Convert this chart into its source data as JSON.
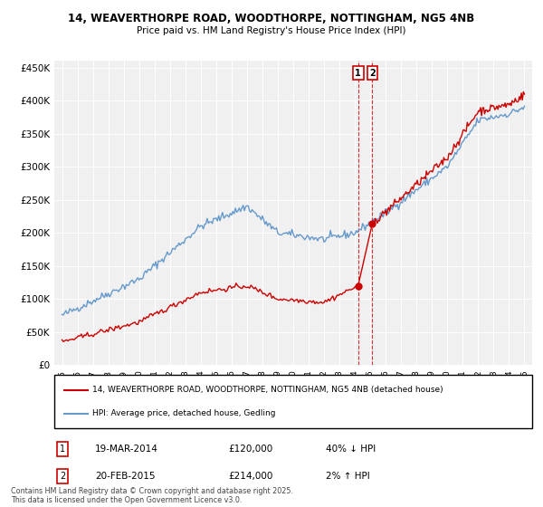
{
  "title1": "14, WEAVERTHORPE ROAD, WOODTHORPE, NOTTINGHAM, NG5 4NB",
  "title2": "Price paid vs. HM Land Registry's House Price Index (HPI)",
  "legend_line1": "14, WEAVERTHORPE ROAD, WOODTHORPE, NOTTINGHAM, NG5 4NB (detached house)",
  "legend_line2": "HPI: Average price, detached house, Gedling",
  "table_rows": [
    {
      "num": "1",
      "date": "19-MAR-2014",
      "price": "£120,000",
      "pct": "40% ↓ HPI"
    },
    {
      "num": "2",
      "date": "20-FEB-2015",
      "price": "£214,000",
      "pct": "2% ↑ HPI"
    }
  ],
  "footnote": "Contains HM Land Registry data © Crown copyright and database right 2025.\nThis data is licensed under the Open Government Licence v3.0.",
  "sale1_date": 2014.21,
  "sale1_price": 120000,
  "sale2_date": 2015.13,
  "sale2_price": 214000,
  "ylim": [
    0,
    460000
  ],
  "xlim_start": 1994.5,
  "xlim_end": 2025.5,
  "red_color": "#cc0000",
  "blue_color": "#6699cc",
  "background_color": "#f0f0f0"
}
